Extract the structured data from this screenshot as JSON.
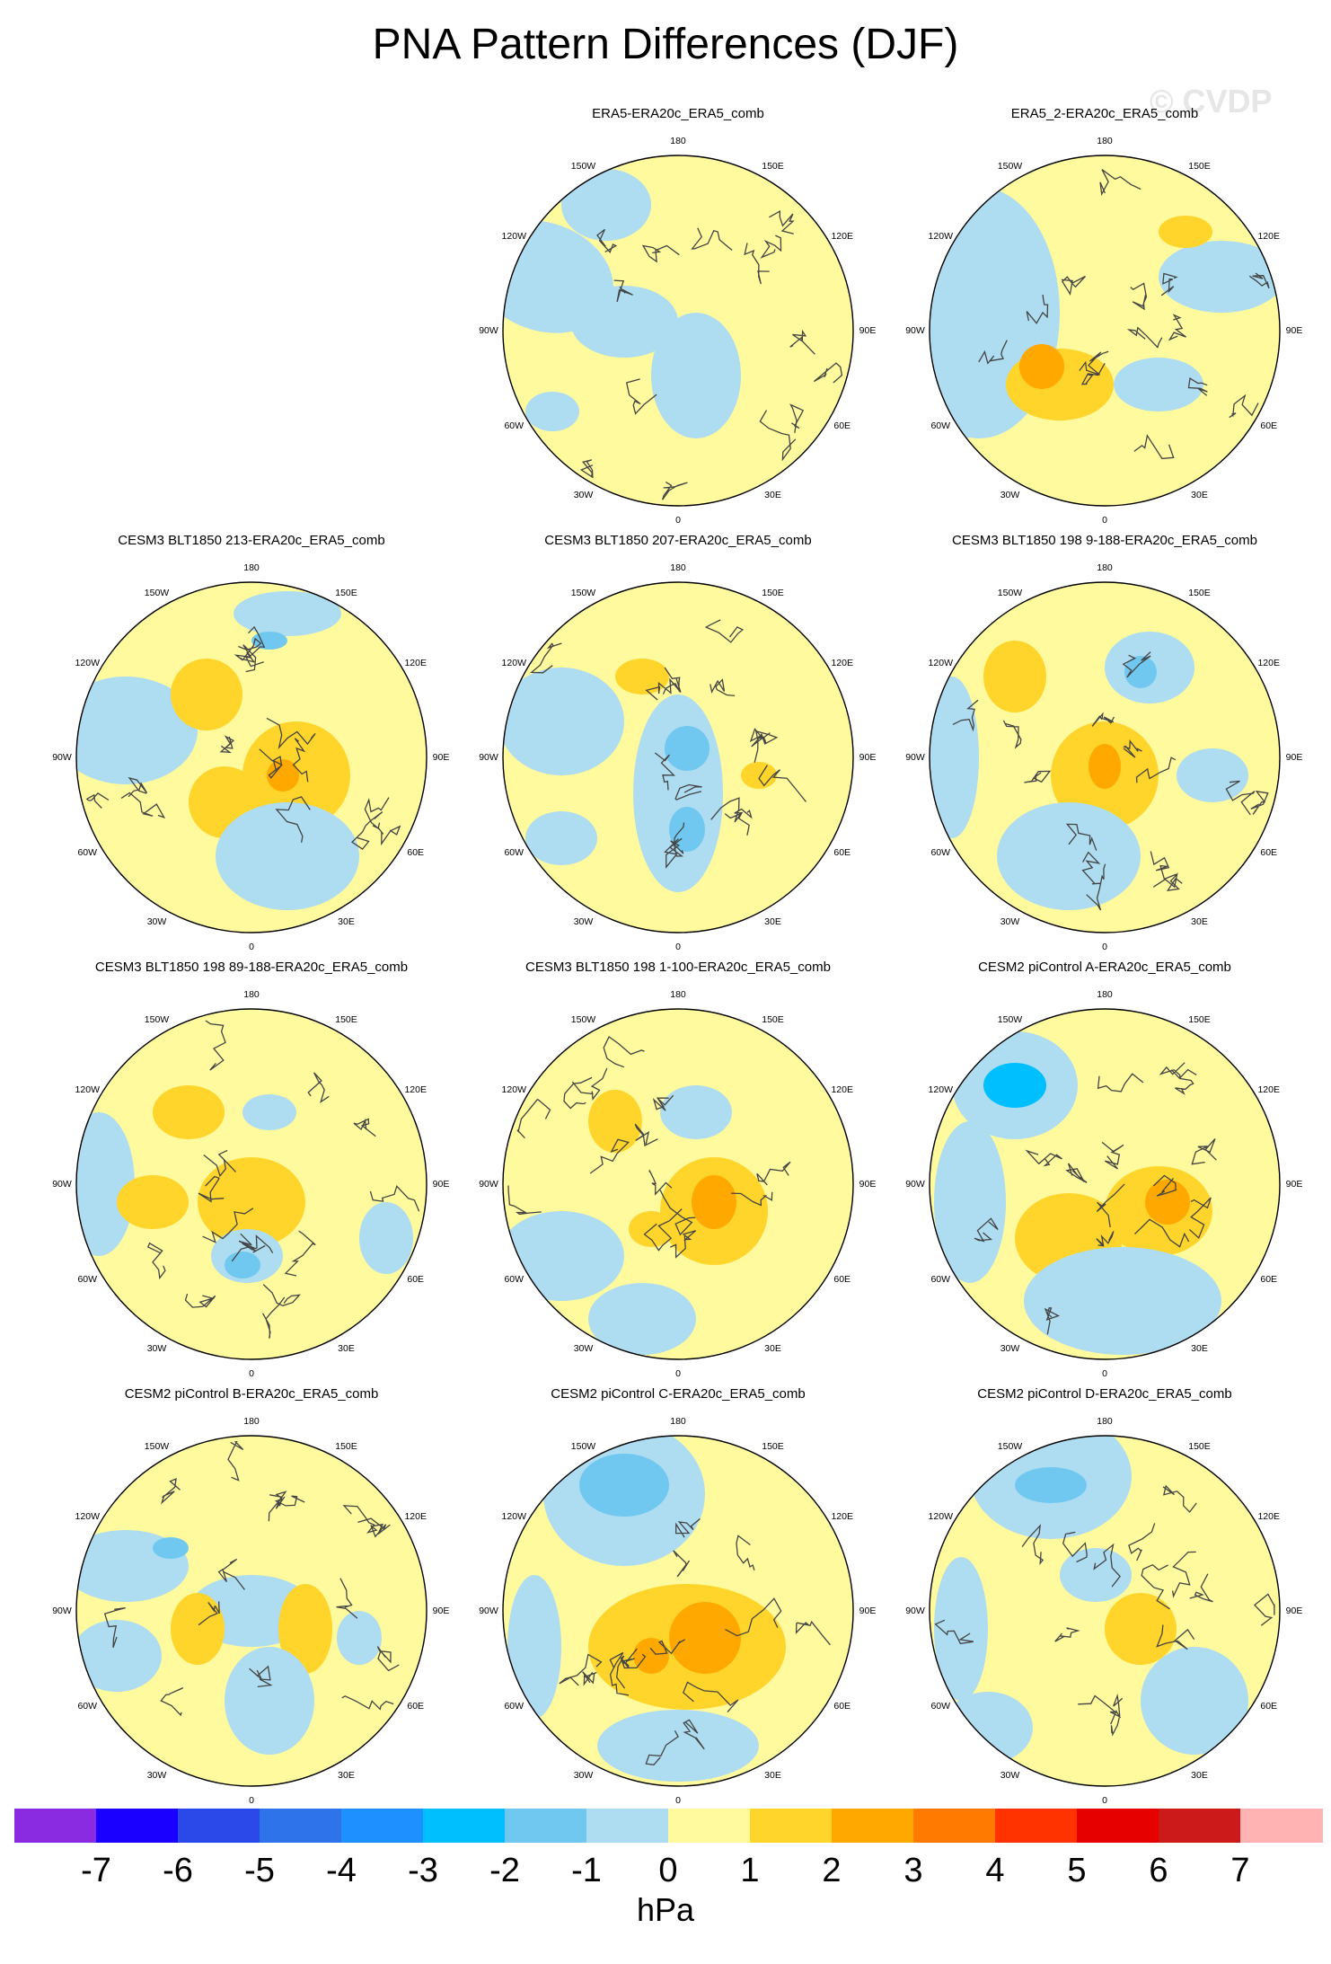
{
  "title": "PNA Pattern Differences (DJF)",
  "watermark": "© CVDP",
  "panels": [
    {
      "title": "ERA5-ERA20c_ERA5_comb",
      "row": 0,
      "col": 1
    },
    {
      "title": "ERA5_2-ERA20c_ERA5_comb",
      "row": 0,
      "col": 2
    },
    {
      "title": "CESM3 BLT1850 213-ERA20c_ERA5_comb",
      "row": 1,
      "col": 0
    },
    {
      "title": "CESM3 BLT1850 207-ERA20c_ERA5_comb",
      "row": 1,
      "col": 1
    },
    {
      "title": "CESM3 BLT1850 198 9-188-ERA20c_ERA5_comb",
      "row": 1,
      "col": 2
    },
    {
      "title": "CESM3 BLT1850 198 89-188-ERA20c_ERA5_comb",
      "row": 2,
      "col": 0
    },
    {
      "title": "CESM3 BLT1850 198 1-100-ERA20c_ERA5_comb",
      "row": 2,
      "col": 1
    },
    {
      "title": "CESM2 piControl A-ERA20c_ERA5_comb",
      "row": 2,
      "col": 2
    },
    {
      "title": "CESM2 piControl B-ERA20c_ERA5_comb",
      "row": 3,
      "col": 0
    },
    {
      "title": "CESM2 piControl C-ERA20c_ERA5_comb",
      "row": 3,
      "col": 1
    },
    {
      "title": "CESM2 piControl D-ERA20c_ERA5_comb",
      "row": 3,
      "col": 2
    }
  ],
  "longitude_labels": [
    "180",
    "150E",
    "120E",
    "90E",
    "60E",
    "30E",
    "0",
    "30W",
    "60W",
    "90W",
    "120W",
    "150W"
  ],
  "colorbar": {
    "unit": "hPa",
    "tick_labels": [
      "-7",
      "-6",
      "-5",
      "-4",
      "-3",
      "-2",
      "-1",
      "0",
      "1",
      "2",
      "3",
      "4",
      "5",
      "6",
      "7"
    ],
    "colors": [
      "#8a2be2",
      "#1a00ff",
      "#2b48e8",
      "#2f73ea",
      "#1e90ff",
      "#00bfff",
      "#70c8f0",
      "#aedcf0",
      "#fffa9e",
      "#ffd52b",
      "#ffa800",
      "#ff7a00",
      "#ff3300",
      "#e60000",
      "#cc1a1a",
      "#ffb3b3"
    ]
  },
  "map_colors": {
    "positive_1": "#fffa9e",
    "positive_2": "#ffd52b",
    "positive_3": "#ffa800",
    "negative_1": "#aedcf0",
    "negative_2": "#70c8f0",
    "negative_3": "#00bfff"
  }
}
